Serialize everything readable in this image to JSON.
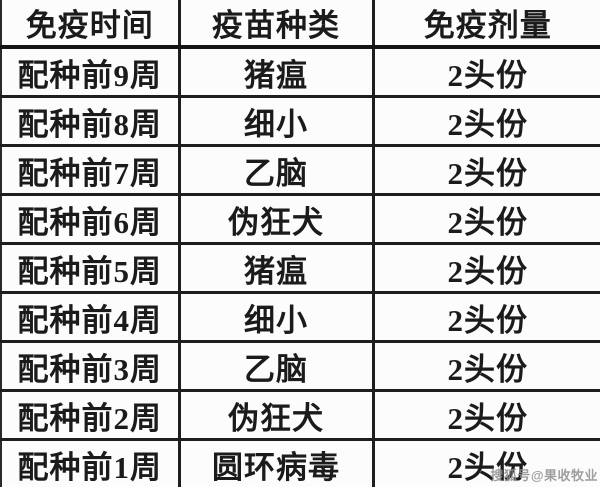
{
  "chart_data": {
    "type": "table",
    "title": "",
    "columns": [
      "免疫时间",
      "疫苗种类",
      "免疫剂量"
    ],
    "rows": [
      [
        "配种前9周",
        "猪瘟",
        "2头份"
      ],
      [
        "配种前8周",
        "细小",
        "2头份"
      ],
      [
        "配种前7周",
        "乙脑",
        "2头份"
      ],
      [
        "配种前6周",
        "伪狂犬",
        "2头份"
      ],
      [
        "配种前5周",
        "猪瘟",
        "2头份"
      ],
      [
        "配种前4周",
        "细小",
        "2头份"
      ],
      [
        "配种前3周",
        "乙脑",
        "2头份"
      ],
      [
        "配种前2周",
        "伪狂犬",
        "2头份"
      ],
      [
        "配种前1周",
        "圆环病毒",
        "2头份"
      ]
    ]
  },
  "watermark": {
    "text": "搜狐号@果收牧业"
  },
  "colors": {
    "border": "#1e1e1e",
    "header_rule": "#141414",
    "text": "#1b1b1b",
    "background": "#fcfcfc",
    "watermark": "#8f8f8f"
  }
}
